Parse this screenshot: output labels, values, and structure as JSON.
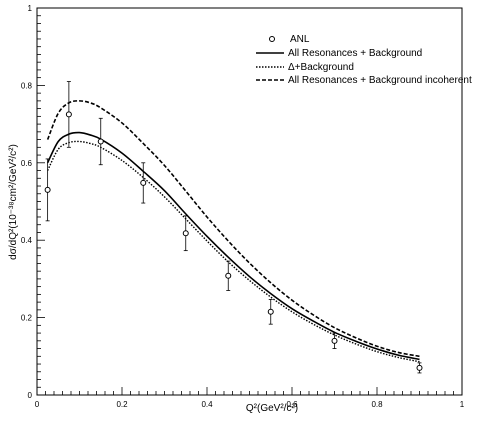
{
  "chart_data": {
    "type": "line",
    "title": "",
    "xlabel": "Q²(GeV²/c²)",
    "ylabel": "dσ/dQ²(10⁻³⁸cm²/GeV²/c²)",
    "xlim": [
      0,
      1
    ],
    "ylim": [
      0,
      1
    ],
    "x_ticks": [
      0,
      0.2,
      0.4,
      0.6,
      0.8,
      1
    ],
    "x_tick_labels": [
      "0",
      "0.2",
      "0.4",
      "0.6",
      "0.8",
      "1"
    ],
    "y_ticks": [
      0,
      0.2,
      0.4,
      0.6,
      0.8,
      1
    ],
    "y_tick_labels": [
      "0",
      "0.2",
      "0.4",
      "0.6",
      "0.8",
      "1"
    ],
    "grid": false,
    "legend_position": "top-right",
    "data_series": {
      "name": "ANL",
      "x": [
        0.025,
        0.075,
        0.15,
        0.25,
        0.35,
        0.45,
        0.55,
        0.7,
        0.9
      ],
      "y": [
        0.53,
        0.725,
        0.655,
        0.548,
        0.418,
        0.308,
        0.215,
        0.14,
        0.07
      ],
      "err": [
        0.08,
        0.085,
        0.06,
        0.052,
        0.045,
        0.038,
        0.032,
        0.02,
        0.013
      ]
    },
    "series": [
      {
        "name": "All Resonances + Background",
        "style": "solid",
        "x": [
          0.025,
          0.05,
          0.075,
          0.1,
          0.125,
          0.15,
          0.2,
          0.25,
          0.3,
          0.35,
          0.4,
          0.45,
          0.5,
          0.55,
          0.6,
          0.65,
          0.7,
          0.75,
          0.8,
          0.85,
          0.9
        ],
        "y": [
          0.6,
          0.655,
          0.674,
          0.678,
          0.672,
          0.661,
          0.625,
          0.578,
          0.528,
          0.468,
          0.41,
          0.356,
          0.306,
          0.262,
          0.223,
          0.191,
          0.162,
          0.139,
          0.119,
          0.103,
          0.092
        ]
      },
      {
        "name": "Δ+Background",
        "style": "dotted",
        "x": [
          0.025,
          0.05,
          0.075,
          0.1,
          0.125,
          0.15,
          0.2,
          0.25,
          0.3,
          0.35,
          0.4,
          0.45,
          0.5,
          0.55,
          0.6,
          0.65,
          0.7,
          0.75,
          0.8,
          0.85,
          0.9
        ],
        "y": [
          0.58,
          0.635,
          0.652,
          0.655,
          0.65,
          0.64,
          0.606,
          0.562,
          0.512,
          0.455,
          0.398,
          0.344,
          0.296,
          0.253,
          0.215,
          0.183,
          0.155,
          0.132,
          0.112,
          0.097,
          0.086
        ]
      },
      {
        "name": "All Resonances + Background incoherent",
        "style": "dashed",
        "x": [
          0.025,
          0.05,
          0.075,
          0.1,
          0.125,
          0.15,
          0.2,
          0.25,
          0.3,
          0.35,
          0.4,
          0.45,
          0.5,
          0.55,
          0.6,
          0.65,
          0.7,
          0.75,
          0.8,
          0.85,
          0.9
        ],
        "y": [
          0.66,
          0.728,
          0.755,
          0.76,
          0.755,
          0.742,
          0.703,
          0.65,
          0.593,
          0.527,
          0.46,
          0.398,
          0.341,
          0.29,
          0.245,
          0.207,
          0.174,
          0.148,
          0.126,
          0.11,
          0.1
        ]
      }
    ]
  }
}
